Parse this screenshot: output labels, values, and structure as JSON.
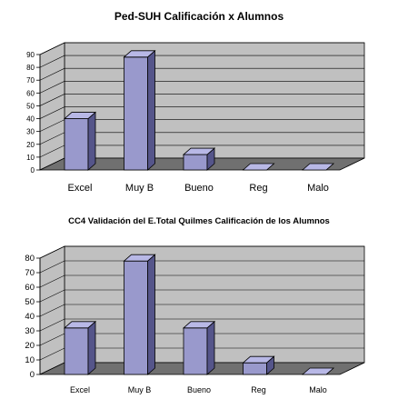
{
  "chart_data": [
    {
      "type": "bar",
      "title": "Ped-SUH Calificación x Alumnos",
      "categories": [
        "Excel",
        "Muy B",
        "Bueno",
        "Reg",
        "Malo"
      ],
      "values": [
        40,
        88,
        12,
        0,
        0
      ],
      "ylim": [
        0,
        90
      ],
      "yticks": [
        "0",
        "10",
        "20",
        "30",
        "40",
        "50",
        "60",
        "70",
        "80",
        "90"
      ],
      "grid": true,
      "colors": {
        "bar_front": "#9999cc",
        "bar_top": "#b8b8e6",
        "bar_side": "#55558a",
        "wall": "#c0c0c0",
        "floor": "#707070"
      }
    },
    {
      "type": "bar",
      "title": "CC4 Validación del E.Total Quilmes Calificación de los Alumnos",
      "categories": [
        "Excel",
        "Muy B",
        "Bueno",
        "Reg",
        "Malo"
      ],
      "values": [
        32,
        78,
        32,
        8,
        0
      ],
      "ylim": [
        0,
        80
      ],
      "yticks": [
        "0",
        "10",
        "20",
        "30",
        "40",
        "50",
        "60",
        "70",
        "80"
      ],
      "grid": true,
      "colors": {
        "bar_front": "#9999cc",
        "bar_top": "#b8b8e6",
        "bar_side": "#55558a",
        "wall": "#c0c0c0",
        "floor": "#707070"
      }
    }
  ]
}
